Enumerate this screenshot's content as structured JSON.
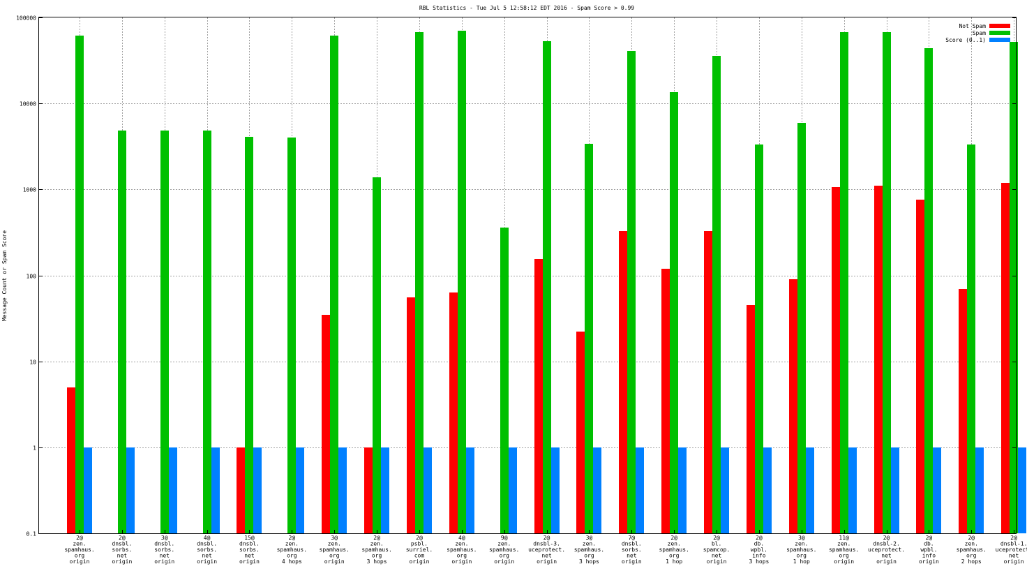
{
  "chart_data": {
    "type": "bar",
    "title": "RBL Statistics - Tue Jul  5 12:58:12 EDT 2016 - Spam Score > 0.99",
    "xlabel": "",
    "ylabel": "Message Count or Spam Score",
    "yscale": "log",
    "ylim": [
      0.1,
      100000
    ],
    "grid": true,
    "legend_position": "top-right",
    "yticks": [
      0.1,
      1,
      10,
      100,
      1000,
      10000,
      100000
    ],
    "ytick_labels": [
      "0.1",
      "1",
      "10",
      "100",
      "1000",
      "10000",
      "100000"
    ],
    "categories": [
      [
        "2@",
        "zen.",
        "spamhaus.",
        "org",
        "origin"
      ],
      [
        "2@",
        "dnsbl.",
        "sorbs.",
        "net",
        "origin"
      ],
      [
        "3@",
        "dnsbl.",
        "sorbs.",
        "net",
        "origin"
      ],
      [
        "4@",
        "dnsbl.",
        "sorbs.",
        "net",
        "origin"
      ],
      [
        "15@",
        "dnsbl.",
        "sorbs.",
        "net",
        "origin"
      ],
      [
        "2@",
        "zen.",
        "spamhaus.",
        "org",
        "4 hops"
      ],
      [
        "3@",
        "zen.",
        "spamhaus.",
        "org",
        "origin"
      ],
      [
        "2@",
        "zen.",
        "spamhaus.",
        "org",
        "3 hops"
      ],
      [
        "2@",
        "psbl.",
        "surriel.",
        "com",
        "origin"
      ],
      [
        "4@",
        "zen.",
        "spamhaus.",
        "org",
        "origin"
      ],
      [
        "9@",
        "zen.",
        "spamhaus.",
        "org",
        "origin"
      ],
      [
        "2@",
        "dnsbl-3.",
        "uceprotect.",
        "net",
        "origin"
      ],
      [
        "3@",
        "zen.",
        "spamhaus.",
        "org",
        "3 hops"
      ],
      [
        "7@",
        "dnsbl.",
        "sorbs.",
        "net",
        "origin"
      ],
      [
        "2@",
        "zen.",
        "spamhaus.",
        "org",
        "1 hop"
      ],
      [
        "2@",
        "bl.",
        "spamcop.",
        "net",
        "origin"
      ],
      [
        "2@",
        "db.",
        "wpbl.",
        "info",
        "3 hops"
      ],
      [
        "3@",
        "zen.",
        "spamhaus.",
        "org",
        "1 hop"
      ],
      [
        "11@",
        "zen.",
        "spamhaus.",
        "org",
        "origin"
      ],
      [
        "2@",
        "dnsbl-2.",
        "uceprotect.",
        "net",
        "origin"
      ],
      [
        "2@",
        "db.",
        "wpbl.",
        "info",
        "origin"
      ],
      [
        "2@",
        "zen.",
        "spamhaus.",
        "org",
        "2 hops"
      ],
      [
        "2@",
        "dnsbl-1.",
        "uceprotect.",
        "net",
        "origin"
      ]
    ],
    "series": [
      {
        "name": "Not Spam",
        "color": "#ff0000",
        "values": [
          5,
          null,
          null,
          null,
          1,
          null,
          35,
          1,
          56,
          63,
          null,
          155,
          22,
          330,
          120,
          325,
          45,
          90,
          1060,
          1100,
          760,
          70,
          1200
        ]
      },
      {
        "name": "Spam",
        "color": "#00c000",
        "values": [
          62000,
          4800,
          4800,
          4800,
          4100,
          4000,
          61000,
          1380,
          68000,
          70000,
          360,
          53000,
          3400,
          41000,
          13500,
          36000,
          3300,
          5900,
          68000,
          67000,
          44000,
          3350,
          52000
        ]
      },
      {
        "name": "Score (0..1)",
        "color": "#0080ff",
        "values": [
          1,
          1,
          1,
          1,
          1,
          1,
          1,
          1,
          1,
          1,
          1,
          1,
          1,
          1,
          1,
          1,
          1,
          1,
          1,
          1,
          1,
          1,
          1
        ]
      }
    ]
  }
}
